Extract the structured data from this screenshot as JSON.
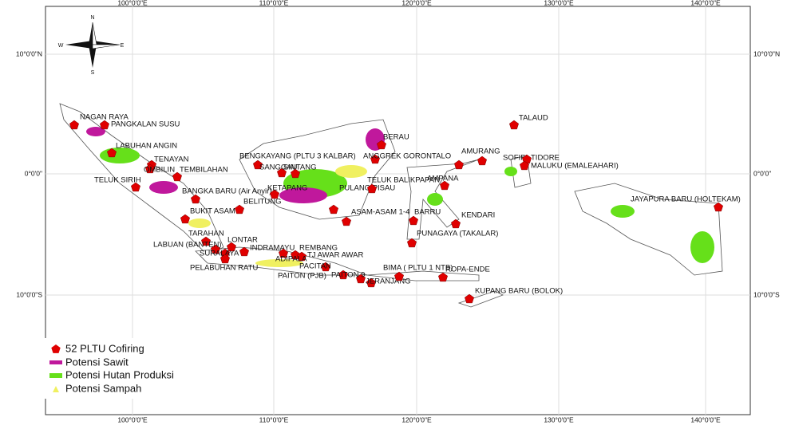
{
  "map": {
    "axes": {
      "top": [
        "100°0'0\"E",
        "110°0'0\"E",
        "120°0'0\"E",
        "130°0'0\"E",
        "140°0'0\"E"
      ],
      "bottom": [
        "100°0'0\"E",
        "110°0'0\"E",
        "120°0'0\"E",
        "130°0'0\"E",
        "140°0'0\"E"
      ],
      "left": [
        "10°0'0\"N",
        "0°0'0\"",
        "10°0'0\"S"
      ],
      "right": [
        "10°0'0\"N",
        "0°0'0\"",
        "10°0'0\"S"
      ]
    },
    "compass": [
      "N",
      "E",
      "S",
      "W"
    ],
    "plants": [
      "NAGAN RAYA",
      "PANGKALAN SUSU",
      "LABUHAN ANGIN",
      "TENAYAN",
      "TEMBILAHAN",
      "OMBILIN",
      "TELUK SIRIH",
      "BANGKA BARU (Air Anyir)",
      "BELITUNG",
      "BUKIT ASAM",
      "TARAHAN",
      "LABUAN (BANTEN)",
      "LONTAR",
      "SURALAYA 8",
      "PELABUHAN RATU",
      "INDRAMAYU",
      "REMBANG",
      "TJ AWAR AWAR",
      "ADIPALA",
      "PACITAN",
      "PAITON (PJB)",
      "PAITON 9",
      "JERANJANG",
      "BIMA ( PLTU 1 NTB)",
      "ROPA-ENDE",
      "KUPANG BARU (BOLOK)",
      "BENGKAYANG (PLTU 3 KALBAR)",
      "SANGGAU",
      "SINTANG",
      "KETAPANG",
      "PULANG PISAU",
      "ASAM-ASAM 1-4",
      "BARRU",
      "PUNAGAYA (TAKALAR)",
      "TELUK BALIKPAPAN",
      "ANGGREK GORONTALO",
      "BERAU",
      "AMPANA",
      "KENDARI",
      "AMURANG",
      "SOFIFI",
      "TIDORE",
      "MALUKU (EMALEAHARI)",
      "TALAUD",
      "JAYAPURA BARU (HOLTEKAM)"
    ],
    "legend": [
      "52 PLTU Cofiring",
      "Potensi Sawit",
      "Potensi Hutan Produksi",
      "Potensi Sampah"
    ]
  }
}
